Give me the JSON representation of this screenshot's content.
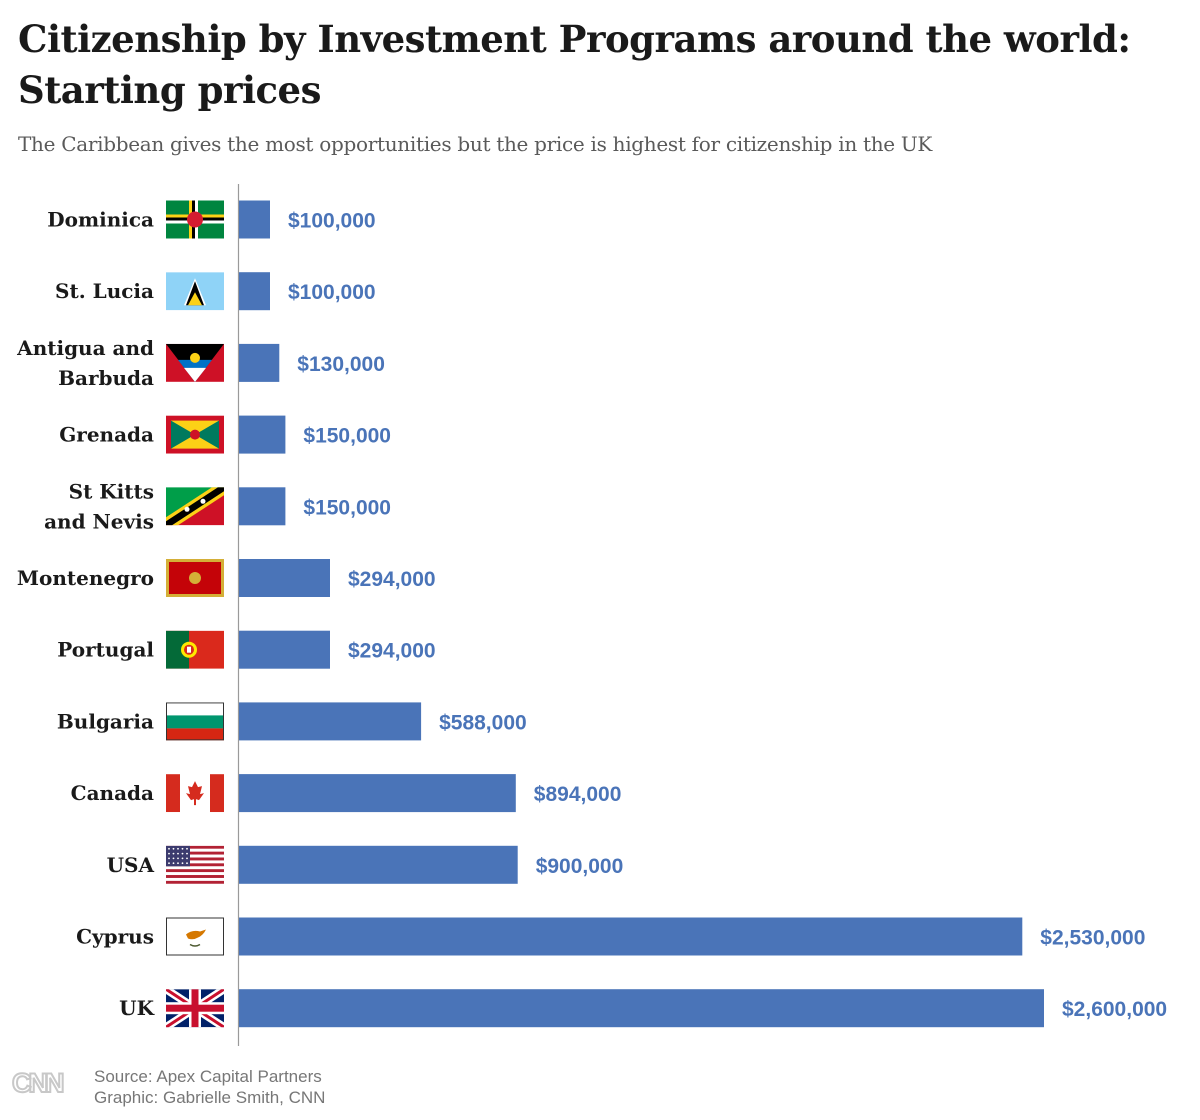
{
  "title": "Citizenship by Investment Programs around the world: Starting prices",
  "subtitle": "The Caribbean gives the most opportunities but the price is highest for citizenship in the UK",
  "bar_color": "#4a74b8",
  "footer": {
    "logo": "CNN",
    "source": "Source: Apex Capital Partners",
    "graphic": "Graphic: Gabrielle Smith, CNN"
  },
  "chart_data": {
    "type": "bar",
    "orientation": "horizontal",
    "title": "Citizenship by Investment Programs around the world: Starting prices",
    "xlabel": "",
    "ylabel": "",
    "xlim": [
      0,
      2600000
    ],
    "grid": false,
    "categories": [
      {
        "label_lines": [
          "Dominica"
        ],
        "flag": "dominica-flag",
        "value": 100000,
        "value_label": "$100,000"
      },
      {
        "label_lines": [
          "St. Lucia"
        ],
        "flag": "st-lucia-flag",
        "value": 100000,
        "value_label": "$100,000"
      },
      {
        "label_lines": [
          "Antigua and",
          "Barbuda"
        ],
        "flag": "antigua-flag",
        "value": 130000,
        "value_label": "$130,000"
      },
      {
        "label_lines": [
          "Grenada"
        ],
        "flag": "grenada-flag",
        "value": 150000,
        "value_label": "$150,000"
      },
      {
        "label_lines": [
          "St Kitts",
          "and Nevis"
        ],
        "flag": "st-kitts-flag",
        "value": 150000,
        "value_label": "$150,000"
      },
      {
        "label_lines": [
          "Montenegro"
        ],
        "flag": "montenegro-flag",
        "value": 294000,
        "value_label": "$294,000"
      },
      {
        "label_lines": [
          "Portugal"
        ],
        "flag": "portugal-flag",
        "value": 294000,
        "value_label": "$294,000"
      },
      {
        "label_lines": [
          "Bulgaria"
        ],
        "flag": "bulgaria-flag",
        "value": 588000,
        "value_label": "$588,000"
      },
      {
        "label_lines": [
          "Canada"
        ],
        "flag": "canada-flag",
        "value": 894000,
        "value_label": "$894,000"
      },
      {
        "label_lines": [
          "USA"
        ],
        "flag": "usa-flag",
        "value": 900000,
        "value_label": "$900,000"
      },
      {
        "label_lines": [
          "Cyprus"
        ],
        "flag": "cyprus-flag",
        "value": 2530000,
        "value_label": "$2,530,000"
      },
      {
        "label_lines": [
          "UK"
        ],
        "flag": "uk-flag",
        "value": 2600000,
        "value_label": "$2,600,000"
      }
    ]
  }
}
